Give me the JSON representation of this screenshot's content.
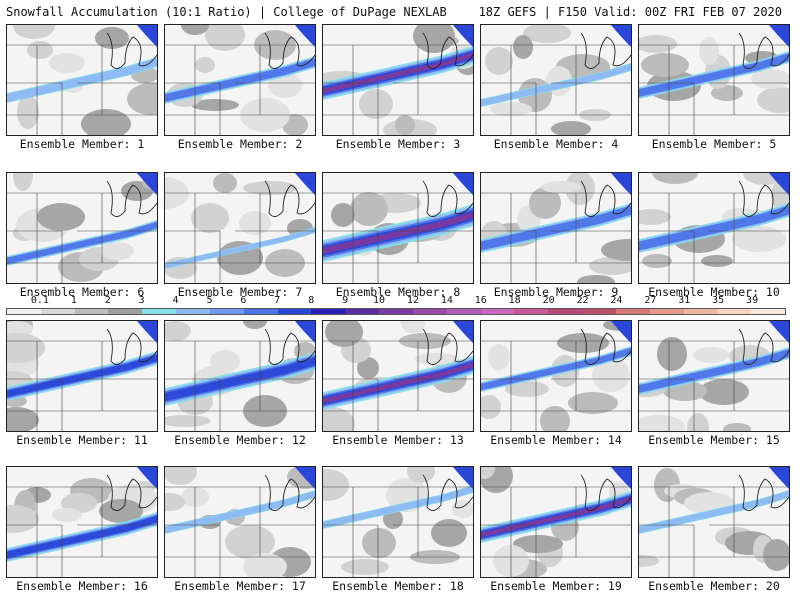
{
  "header": {
    "left_title": "Snowfall Accumulation (10:1 Ratio) | College of DuPage NEXLAB",
    "right_title": "18Z GEFS | F150 Valid: 00Z FRI FEB 07 2020"
  },
  "colorbar": {
    "labels": [
      "0.1",
      "1",
      "2",
      "3",
      "4",
      "5",
      "6",
      "7",
      "8",
      "9",
      "10",
      "12",
      "14",
      "16",
      "18",
      "20",
      "22",
      "24",
      "27",
      "31",
      "35",
      "39"
    ],
    "colors": [
      "#f2f2f2",
      "#d8d8d8",
      "#bdbdbd",
      "#9e9e9e",
      "#86dfe8",
      "#8fb8f5",
      "#6f98f0",
      "#4d74e8",
      "#2a47d8",
      "#2a1fb8",
      "#5a2aa0",
      "#7a3a9e",
      "#9a4aa8",
      "#b45ab8",
      "#c86ac0",
      "#c75a9a",
      "#b84a78",
      "#b8526a",
      "#d87a7a",
      "#e59a8a",
      "#f0b8a0",
      "#f7d4c0",
      "#fbe8d8"
    ]
  },
  "members": [
    {
      "label": "Ensemble Member: 1"
    },
    {
      "label": "Ensemble Member: 2"
    },
    {
      "label": "Ensemble Member: 3"
    },
    {
      "label": "Ensemble Member: 4"
    },
    {
      "label": "Ensemble Member: 5"
    },
    {
      "label": "Ensemble Member: 6"
    },
    {
      "label": "Ensemble Member: 7"
    },
    {
      "label": "Ensemble Member: 8"
    },
    {
      "label": "Ensemble Member: 9"
    },
    {
      "label": "Ensemble Member: 10"
    },
    {
      "label": "Ensemble Member: 11"
    },
    {
      "label": "Ensemble Member: 12"
    },
    {
      "label": "Ensemble Member: 13"
    },
    {
      "label": "Ensemble Member: 14"
    },
    {
      "label": "Ensemble Member: 15"
    },
    {
      "label": "Ensemble Member: 16"
    },
    {
      "label": "Ensemble Member: 17"
    },
    {
      "label": "Ensemble Member: 18"
    },
    {
      "label": "Ensemble Member: 19"
    },
    {
      "label": "Ensemble Member: 20"
    }
  ]
}
